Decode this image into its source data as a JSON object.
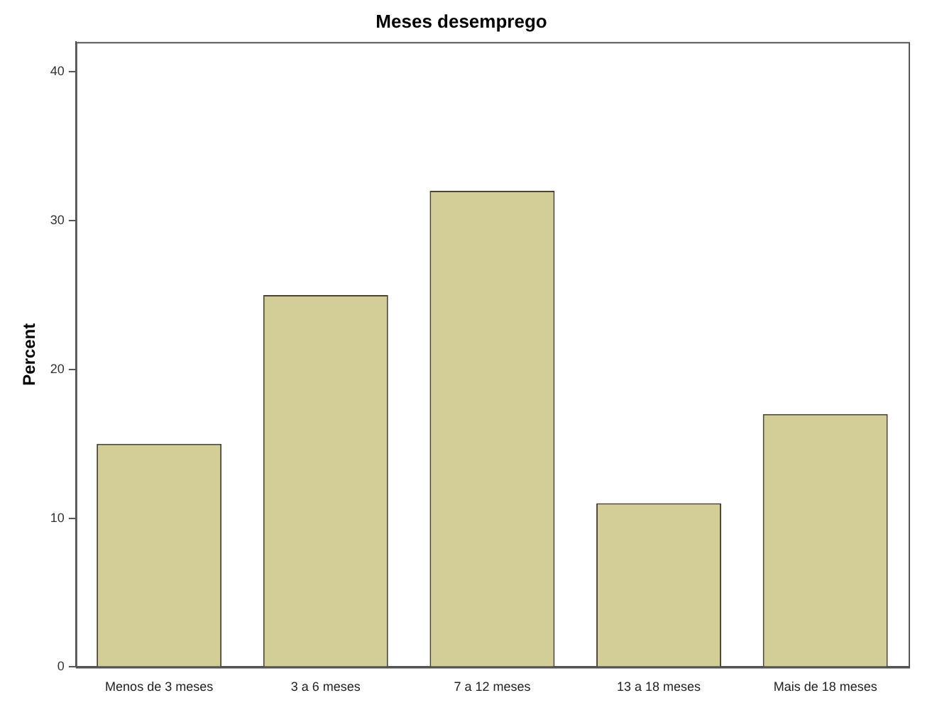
{
  "chart_data": {
    "type": "bar",
    "title": "Meses desemprego",
    "ylabel": "Percent",
    "categories": [
      "Menos de 3 meses",
      "3 a 6 meses",
      "7 a 12 meses",
      "13 a 18 meses",
      "Mais de 18 meses"
    ],
    "values": [
      15,
      25,
      32,
      11,
      17
    ],
    "color": "#d3cd97",
    "ylim": [
      0,
      42
    ],
    "yticks": [
      0,
      10,
      20,
      30,
      40
    ],
    "grid": false,
    "legend": false
  }
}
